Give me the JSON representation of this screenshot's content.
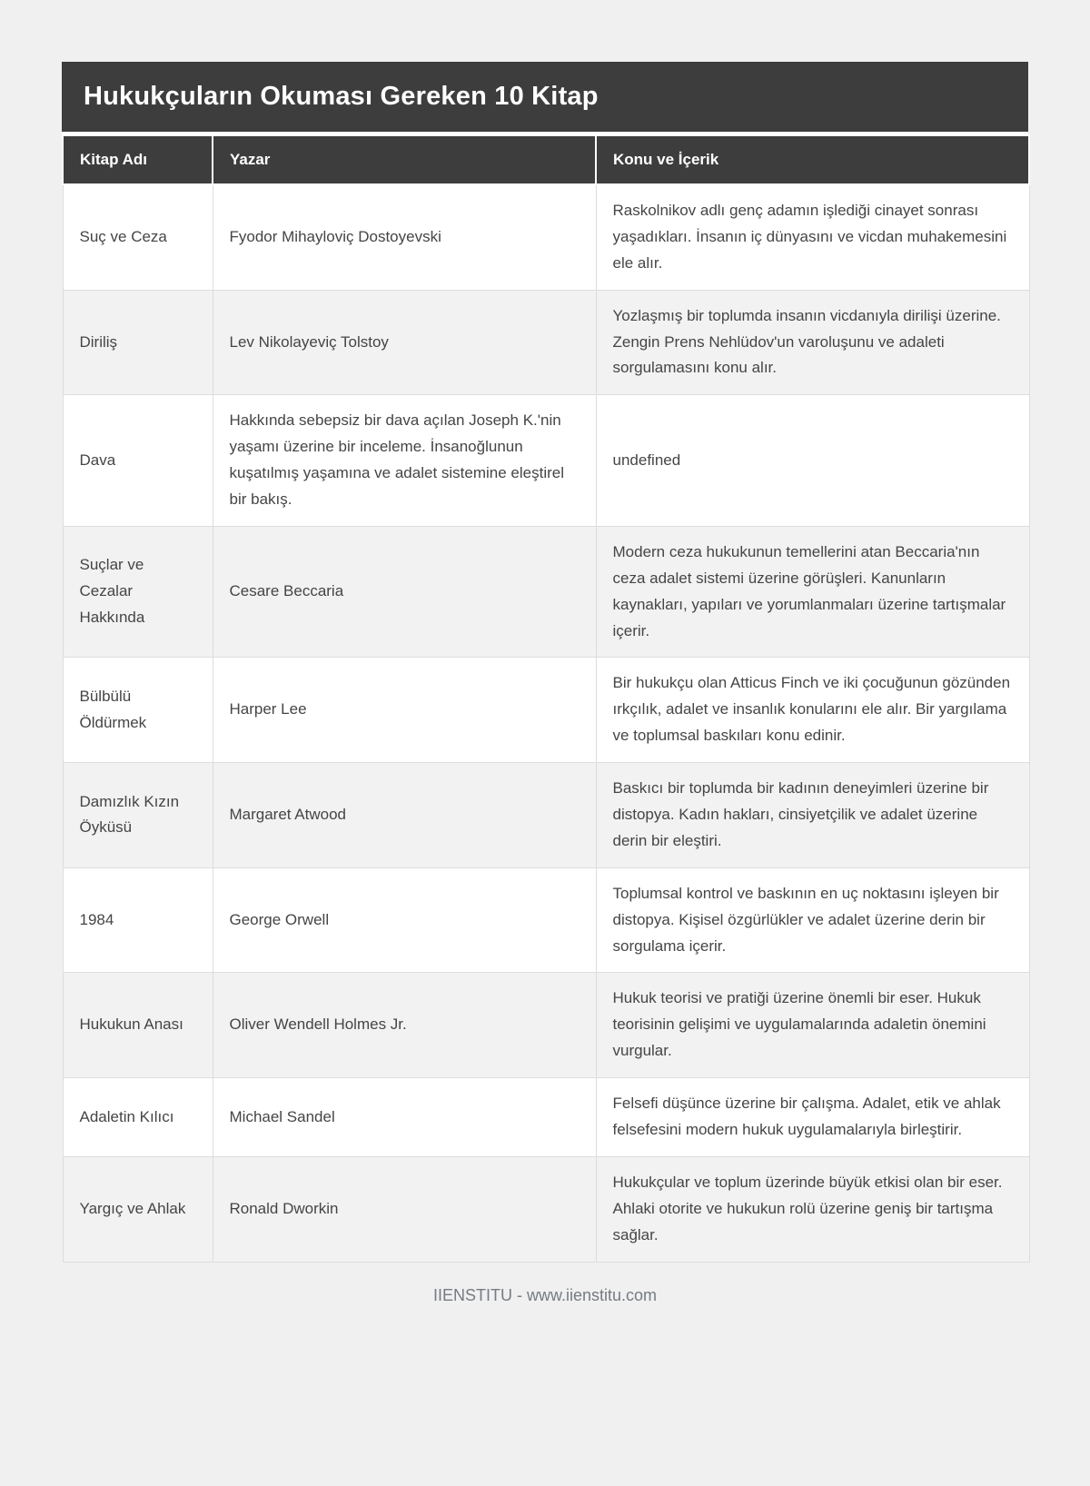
{
  "title": "Hukukçuların Okuması Gereken 10 Kitap",
  "table": {
    "columns": [
      "Kitap Adı",
      "Yazar",
      "Konu ve İçerik"
    ],
    "rows": [
      {
        "book": "Suç ve Ceza",
        "author": "Fyodor Mihayloviç Dostoyevski",
        "content": "Raskolnikov adlı genç adamın işlediği cinayet sonrası yaşadıkları. İnsanın iç dünyasını ve vicdan muhakemesini ele alır."
      },
      {
        "book": "Diriliş",
        "author": "Lev Nikolayeviç Tolstoy",
        "content": "Yozlaşmış bir toplumda insanın vicdanıyla dirilişi üzerine. Zengin Prens Nehlüdov'un varoluşunu ve adaleti sorgulamasını konu alır."
      },
      {
        "book": "Dava",
        "author": "Hakkında sebepsiz bir dava açılan Joseph K.'nin yaşamı üzerine bir inceleme. İnsanoğlunun kuşatılmış yaşamına ve adalet sistemine eleştirel bir bakış.",
        "content": "undefined"
      },
      {
        "book": "Suçlar ve Cezalar Hakkında",
        "author": "Cesare Beccaria",
        "content": "Modern ceza hukukunun temellerini atan Beccaria'nın ceza adalet sistemi üzerine görüşleri. Kanunların kaynakları, yapıları ve yorumlanmaları üzerine tartışmalar içerir."
      },
      {
        "book": "Bülbülü Öldürmek",
        "author": "Harper Lee",
        "content": "Bir hukukçu olan Atticus Finch ve iki çocuğunun gözünden ırkçılık, adalet ve insanlık konularını ele alır. Bir yargılama ve toplumsal baskıları konu edinir."
      },
      {
        "book": "Damızlık Kızın Öyküsü",
        "author": "Margaret Atwood",
        "content": "Baskıcı bir toplumda bir kadının deneyimleri üzerine bir distopya. Kadın hakları, cinsiyetçilik ve adalet üzerine derin bir eleştiri."
      },
      {
        "book": "1984",
        "author": "George Orwell",
        "content": "Toplumsal kontrol ve baskının en uç noktasını işleyen bir distopya. Kişisel özgürlükler ve adalet üzerine derin bir sorgulama içerir."
      },
      {
        "book": "Hukukun Anası",
        "author": "Oliver Wendell Holmes Jr.",
        "content": "Hukuk teorisi ve pratiği üzerine önemli bir eser. Hukuk teorisinin gelişimi ve uygulamalarında adaletin önemini vurgular."
      },
      {
        "book": "Adaletin Kılıcı",
        "author": "Michael Sandel",
        "content": "Felsefi düşünce üzerine bir çalışma. Adalet, etik ve ahlak felsefesini modern hukuk uygulamalarıyla birleştirir."
      },
      {
        "book": "Yargıç ve Ahlak",
        "author": "Ronald Dworkin",
        "content": "Hukukçular ve toplum üzerinde büyük etkisi olan bir eser. Ahlaki otorite ve hukukun rolü üzerine geniş bir tartışma sağlar."
      }
    ]
  },
  "footer": {
    "text": "IIENSTITU - www.iienstitu.com"
  },
  "colors": {
    "header_bg": "#3d3d3d",
    "header_text": "#ffffff",
    "row_bg": "#ffffff",
    "alt_row_bg": "#f2f2f2",
    "page_bg": "#f0f0f0",
    "body_text": "#454545",
    "footer_text": "#767b83"
  }
}
